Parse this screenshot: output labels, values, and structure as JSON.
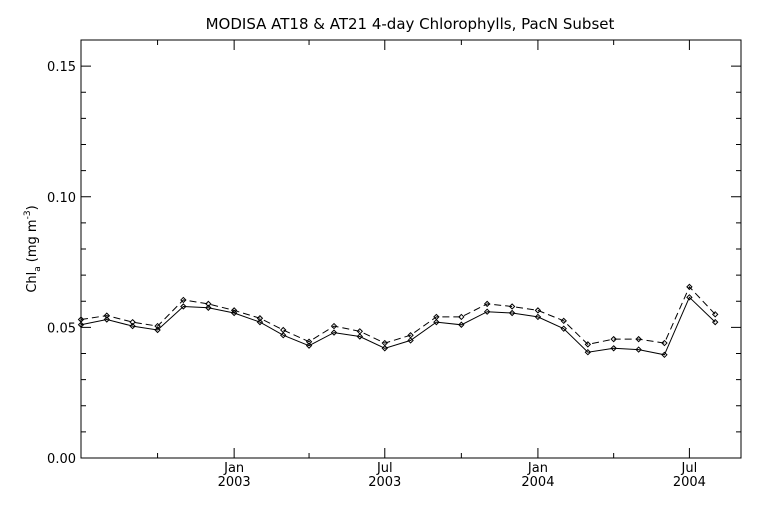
{
  "chart_data": {
    "type": "line",
    "title": "MODISA AT18 & AT21 4-day Chlorophylls, PacN Subset",
    "ylabel_main": "Chl",
    "ylabel_sub": "a",
    "ylabel_unit": "(mg m",
    "ylabel_sup": "-3",
    "ylabel_close": ")",
    "xlabel": "",
    "ylim": [
      0.0,
      0.16
    ],
    "xlim": [
      "2002-07-01",
      "2004-09-01"
    ],
    "yticks": [
      {
        "value": 0.0,
        "label": "0.00"
      },
      {
        "value": 0.05,
        "label": "0.05"
      },
      {
        "value": 0.1,
        "label": "0.10"
      },
      {
        "value": 0.15,
        "label": "0.15"
      }
    ],
    "xticks": [
      {
        "date": "2003-01-01",
        "line1": "Jan",
        "line2": "2003"
      },
      {
        "date": "2003-07-01",
        "line1": "Jul",
        "line2": "2003"
      },
      {
        "date": "2004-01-01",
        "line1": "Jan",
        "line2": "2004"
      },
      {
        "date": "2004-07-01",
        "line1": "Jul",
        "line2": "2004"
      }
    ],
    "grid": false,
    "legend": "none",
    "series": [
      {
        "style": "dashed",
        "color": "#000000",
        "x": [
          "2002-07-01",
          "2002-08-01",
          "2002-09-01",
          "2002-10-01",
          "2002-11-01",
          "2002-12-01",
          "2003-01-01",
          "2003-02-01",
          "2003-03-01",
          "2003-04-01",
          "2003-05-01",
          "2003-06-01",
          "2003-07-01",
          "2003-08-01",
          "2003-09-01",
          "2003-10-01",
          "2003-11-01",
          "2003-12-01",
          "2004-01-01",
          "2004-02-01",
          "2004-03-01",
          "2004-04-01",
          "2004-05-01",
          "2004-06-01",
          "2004-07-01",
          "2004-08-01"
        ],
        "values": [
          0.053,
          0.0545,
          0.052,
          0.0505,
          0.0605,
          0.059,
          0.0565,
          0.0535,
          0.049,
          0.0445,
          0.0505,
          0.0485,
          0.044,
          0.047,
          0.054,
          0.054,
          0.059,
          0.058,
          0.0565,
          0.0525,
          0.0435,
          0.0455,
          0.0455,
          0.044,
          0.0655,
          0.055
        ]
      },
      {
        "style": "solid",
        "color": "#000000",
        "x": [
          "2002-07-01",
          "2002-08-01",
          "2002-09-01",
          "2002-10-01",
          "2002-11-01",
          "2002-12-01",
          "2003-01-01",
          "2003-02-01",
          "2003-03-01",
          "2003-04-01",
          "2003-05-01",
          "2003-06-01",
          "2003-07-01",
          "2003-08-01",
          "2003-09-01",
          "2003-10-01",
          "2003-11-01",
          "2003-12-01",
          "2004-01-01",
          "2004-02-01",
          "2004-03-01",
          "2004-04-01",
          "2004-05-01",
          "2004-06-01",
          "2004-07-01",
          "2004-08-01"
        ],
        "values": [
          0.051,
          0.053,
          0.0505,
          0.049,
          0.058,
          0.0575,
          0.0555,
          0.052,
          0.047,
          0.043,
          0.048,
          0.0465,
          0.042,
          0.045,
          0.052,
          0.051,
          0.056,
          0.0555,
          0.054,
          0.0495,
          0.0405,
          0.042,
          0.0415,
          0.0395,
          0.0615,
          0.052
        ]
      }
    ]
  }
}
